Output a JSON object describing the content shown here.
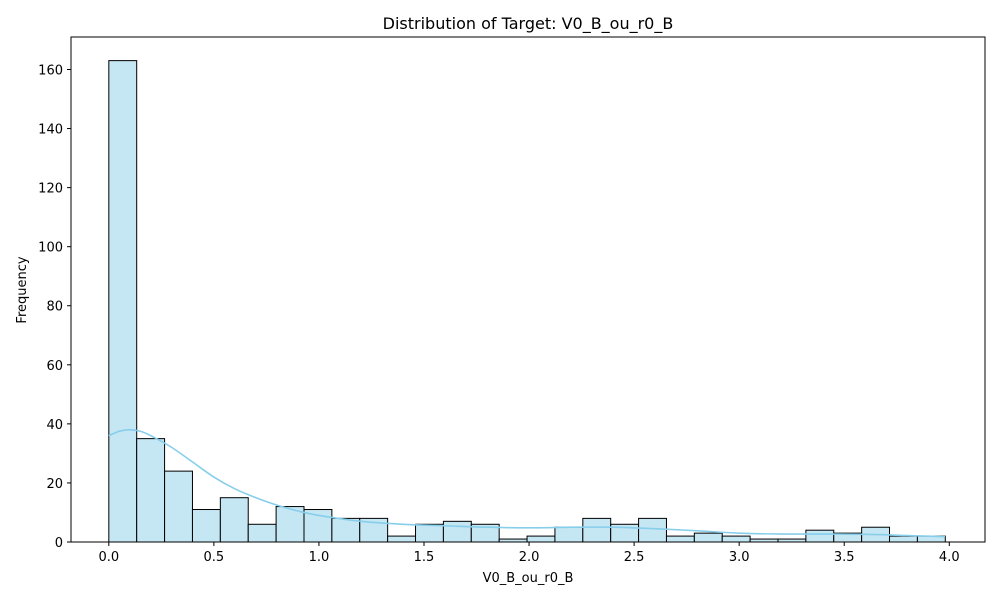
{
  "chart_data": {
    "type": "bar",
    "title": "Distribution of Target: V0_B_ou_r0_B",
    "xlabel": "V0_B_ou_r0_B",
    "ylabel": "Frequency",
    "xlim": [
      -0.18,
      4.17
    ],
    "ylim": [
      0,
      171
    ],
    "xticks": [
      0.0,
      0.5,
      1.0,
      1.5,
      2.0,
      2.5,
      3.0,
      3.5,
      4.0
    ],
    "xtick_labels": [
      "0.0",
      "0.5",
      "1.0",
      "1.5",
      "2.0",
      "2.5",
      "3.0",
      "3.5",
      "4.0"
    ],
    "yticks": [
      0,
      20,
      40,
      60,
      80,
      100,
      120,
      140,
      160
    ],
    "ytick_labels": [
      "0",
      "20",
      "40",
      "60",
      "80",
      "100",
      "120",
      "140",
      "160"
    ],
    "bin_start": 0.0,
    "bin_width": 0.1327,
    "counts": [
      163,
      35,
      24,
      11,
      15,
      6,
      12,
      11,
      8,
      8,
      2,
      6,
      7,
      6,
      1,
      2,
      5,
      8,
      6,
      8,
      2,
      3,
      2,
      1,
      1,
      4,
      3,
      5,
      2,
      2
    ],
    "kde": {
      "x": [
        0.0,
        0.05,
        0.1,
        0.15,
        0.2,
        0.3,
        0.4,
        0.5,
        0.6,
        0.7,
        0.8,
        0.9,
        1.0,
        1.2,
        1.4,
        1.6,
        1.8,
        2.0,
        2.2,
        2.4,
        2.6,
        2.8,
        3.0,
        3.2,
        3.4,
        3.6,
        3.8,
        3.98
      ],
      "y": [
        36,
        37.5,
        38,
        37.5,
        36,
        32,
        27,
        22,
        18,
        15,
        12.5,
        10.5,
        9,
        7,
        6,
        5.5,
        5,
        4.8,
        5,
        5,
        4.5,
        3.8,
        3,
        2.7,
        2.7,
        2.6,
        2.2,
        1.8
      ]
    },
    "grid": false,
    "colors": {
      "bar_fill": "#c5e6f3",
      "bar_edge": "#000000",
      "kde_line": "#87ceeb"
    }
  }
}
